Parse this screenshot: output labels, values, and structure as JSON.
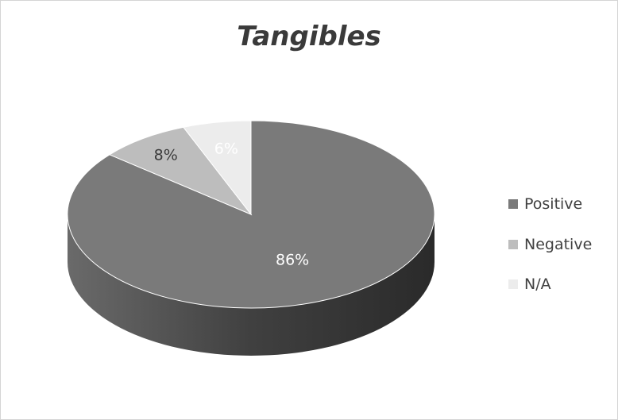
{
  "chart_data": {
    "type": "pie",
    "title": "Tangibles",
    "slices": [
      {
        "name": "Positive",
        "value": 86,
        "label": "86%",
        "color": "#7a7a7a",
        "side_color": "#505050",
        "label_color": "#ffffff"
      },
      {
        "name": "Negative",
        "value": 8,
        "label": "8%",
        "color": "#bdbdbd",
        "side_color": "#8e8e8e",
        "label_color": "#3a3a3a"
      },
      {
        "name": "N/A",
        "value": 6,
        "label": "6%",
        "color": "#ececec",
        "side_color": "#bcbcbc",
        "label_color": "#ffffff"
      }
    ],
    "three_d": true,
    "legend_position": "right"
  }
}
